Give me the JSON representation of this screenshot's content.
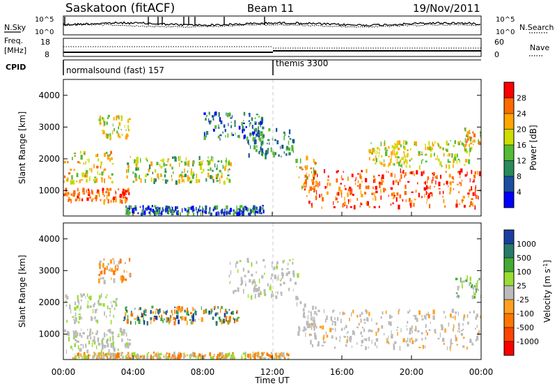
{
  "header": {
    "title": "Saskatoon (fitACF)",
    "beam": "Beam 11",
    "date": "19/Nov/2011"
  },
  "noise_panel": {
    "left_label": "N.Sky",
    "left_ticks": [
      "10^5",
      "10^0"
    ],
    "right_label": "N.Search",
    "right_ticks": [
      "10^5",
      "10^0"
    ]
  },
  "freq_panel": {
    "left_label_1": "Freq.",
    "left_label_2": "[MHz]",
    "left_ticks": [
      "18",
      "8"
    ],
    "right_label": "Nave",
    "right_ticks": [
      "60",
      "0"
    ]
  },
  "cpid_panel": {
    "label": "CPID",
    "modes": [
      "normalsound (fast) 157",
      "themis 3300"
    ]
  },
  "chart_data": [
    {
      "type": "heatmap",
      "panel": "power",
      "ylabel": "Slant Range [km]",
      "yticks": [
        "1000",
        "2000",
        "3000",
        "4000"
      ],
      "ylim": [
        200,
        4500
      ],
      "xlim": [
        "00:00",
        "24:00"
      ],
      "colorbar": {
        "label": "Power [dB]",
        "ticks": [
          "28",
          "24",
          "20",
          "16",
          "12",
          "8",
          "4"
        ],
        "colors": [
          "#ff0000",
          "#ff6a00",
          "#ffa500",
          "#ccdd00",
          "#55bb33",
          "#2a8a5a",
          "#1a4fa0",
          "#0000ff"
        ]
      }
    },
    {
      "type": "heatmap",
      "panel": "velocity",
      "ylabel": "Slant Range [km]",
      "yticks": [
        "1000",
        "2000",
        "3000",
        "4000"
      ],
      "ylim": [
        200,
        4500
      ],
      "xlim": [
        "00:00",
        "24:00"
      ],
      "colorbar": {
        "label": "Velocity [m s",
        "label_sup": "-1",
        "label_end": "]",
        "ticks": [
          "1000",
          "500",
          "100",
          "25",
          "-25",
          "-100",
          "-500",
          "-1000"
        ],
        "colors": [
          "#1a3fa0",
          "#2a7a6a",
          "#44aa33",
          "#99dd33",
          "#bbbbbb",
          "#ffa020",
          "#ff7700",
          "#ff4400",
          "#ff0000"
        ]
      }
    }
  ],
  "x_axis": {
    "ticks": [
      "00:00",
      "04:00",
      "08:00",
      "12:00",
      "16:00",
      "20:00",
      "00:00"
    ],
    "label": "Time UT"
  }
}
